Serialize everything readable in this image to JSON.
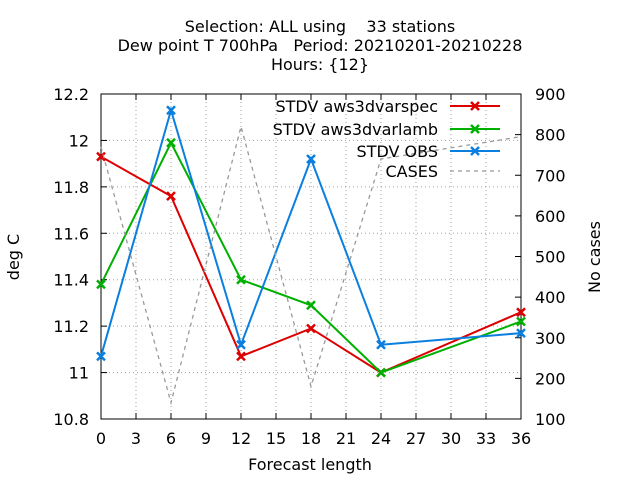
{
  "chart_data": {
    "type": "line",
    "title_lines": [
      "Selection: ALL using    33 stations",
      "Dew point T 700hPa   Period: 20210201-20210228",
      "Hours: {12}"
    ],
    "xlabel": "Forecast length",
    "ylabel": "deg C",
    "y2label": "No cases",
    "xlim": [
      0,
      36
    ],
    "ylim": [
      10.8,
      12.2
    ],
    "y2lim": [
      100,
      900
    ],
    "xticks": [
      "0",
      "3",
      "6",
      "9",
      "12",
      "15",
      "18",
      "21",
      "24",
      "27",
      "30",
      "33",
      "36"
    ],
    "yticks": [
      "10.8",
      "11",
      "11.2",
      "11.4",
      "11.6",
      "11.8",
      "12",
      "12.2"
    ],
    "y2ticks": [
      "100",
      "200",
      "300",
      "400",
      "500",
      "600",
      "700",
      "800",
      "900"
    ],
    "grid": true,
    "legend_position": "top-right",
    "x": [
      0,
      6,
      12,
      18,
      24,
      36
    ],
    "series": [
      {
        "name": "STDV aws3dvarspec",
        "color": "#dd0000",
        "axis": "y1",
        "style": "solid-cross",
        "values": [
          11.93,
          11.76,
          11.07,
          11.19,
          11.0,
          11.26
        ]
      },
      {
        "name": "STDV aws3dvarlamb",
        "color": "#00b000",
        "axis": "y1",
        "style": "solid-cross",
        "values": [
          11.38,
          11.99,
          11.4,
          11.29,
          11.0,
          11.22
        ]
      },
      {
        "name": "STDV OBS",
        "color": "#0a7fe0",
        "axis": "y1",
        "style": "solid-cross",
        "values": [
          11.07,
          12.13,
          11.12,
          11.92,
          11.12,
          11.17
        ]
      },
      {
        "name": "CASES",
        "color": "#999999",
        "axis": "y2",
        "style": "dashed",
        "values": [
          770,
          140,
          820,
          180,
          740,
          795
        ]
      }
    ]
  }
}
